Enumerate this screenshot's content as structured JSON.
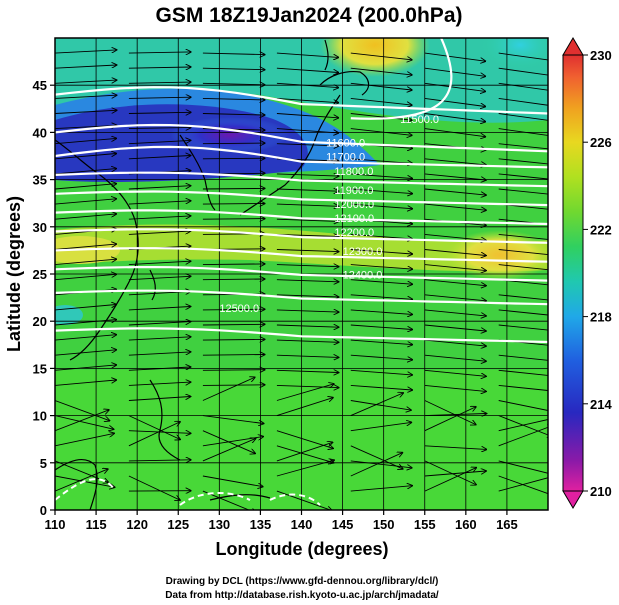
{
  "title": "GSM 18Z19Jan2024 (200.0hPa)",
  "xlabel": "Longitude (degrees)",
  "ylabel": "Latitude  (degrees)",
  "x_ticks": [
    "110",
    "115",
    "120",
    "125",
    "130",
    "135",
    "140",
    "145",
    "150",
    "155",
    "160",
    "165"
  ],
  "y_ticks": [
    "0",
    "5",
    "10",
    "15",
    "20",
    "25",
    "30",
    "35",
    "40",
    "45"
  ],
  "colorbar": {
    "ticks": [
      "230",
      "226",
      "222",
      "218",
      "214",
      "210"
    ],
    "colors": [
      "#e0208c",
      "#8a1aa8",
      "#3020c0",
      "#2060e0",
      "#20a8e8",
      "#20c8b0",
      "#30d060",
      "#60d830",
      "#a0e020",
      "#e0e020",
      "#f0b020",
      "#f07020",
      "#e03030"
    ]
  },
  "contour_labels": [
    "11500.0",
    "11600.0",
    "11700.0",
    "11800.0",
    "11900.0",
    "12000.0",
    "12100.0",
    "12200.0",
    "12300.0",
    "12400.0",
    "12500.0"
  ],
  "footer": {
    "line1": "Drawing by DCL (https://www.gfd-dennou.org/library/dcl/)",
    "line2": "Data from http://database.rish.kyoto-u.ac.jp/arch/jmadata/"
  },
  "chart_data": {
    "type": "map",
    "title": "GSM 18Z19Jan2024 (200.0hPa)",
    "xlabel": "Longitude (degrees)",
    "ylabel": "Latitude  (degrees)",
    "xlim": [
      110,
      170
    ],
    "ylim": [
      0,
      50
    ],
    "colorbar_range": [
      210,
      230
    ],
    "contours": [
      {
        "label": "11500.0",
        "lon": 152,
        "lat": 41
      },
      {
        "label": "11600.0",
        "lon": 143,
        "lat": 38.5
      },
      {
        "label": "11700.0",
        "lon": 143,
        "lat": 37
      },
      {
        "label": "11800.0",
        "lon": 144,
        "lat": 35.5
      },
      {
        "label": "11900.0",
        "lon": 144,
        "lat": 33.5
      },
      {
        "label": "12000.0",
        "lon": 144,
        "lat": 32
      },
      {
        "label": "12100.0",
        "lon": 144,
        "lat": 30.5
      },
      {
        "label": "12200.0",
        "lon": 144,
        "lat": 29
      },
      {
        "label": "12300.0",
        "lon": 145,
        "lat": 27
      },
      {
        "label": "12400.0",
        "lon": 145,
        "lat": 24.5
      },
      {
        "label": "12500.0",
        "lon": 130,
        "lat": 21
      }
    ]
  }
}
